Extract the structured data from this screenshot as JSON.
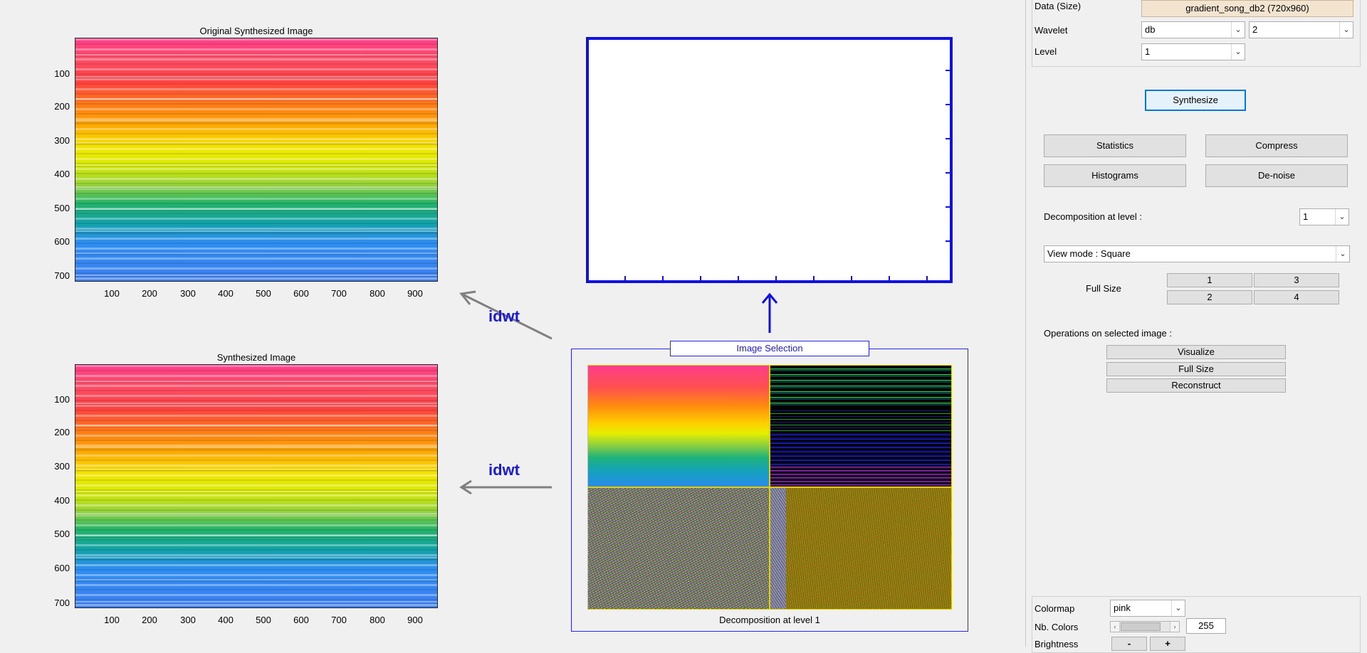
{
  "plots": {
    "top_title": "Original Synthesized Image",
    "bottom_title": "Synthesized Image",
    "y_ticks": [
      "100",
      "200",
      "300",
      "400",
      "500",
      "600",
      "700"
    ],
    "x_ticks": [
      "100",
      "200",
      "300",
      "400",
      "500",
      "600",
      "700",
      "800",
      "900"
    ]
  },
  "arrows": {
    "idwt_label": "idwt"
  },
  "selection": {
    "title": "Image Selection",
    "caption": "Decomposition at level 1"
  },
  "panel": {
    "data_label": "Data  (Size)",
    "data_value": "gradient_song_db2  (720x960)",
    "wavelet_label": "Wavelet",
    "wavelet_family": "db",
    "wavelet_order": "2",
    "level_label": "Level",
    "level_value": "1",
    "synthesize": "Synthesize",
    "statistics": "Statistics",
    "compress": "Compress",
    "histograms": "Histograms",
    "denoise": "De-noise",
    "decomp_label": "Decomposition at level :",
    "decomp_value": "1",
    "view_mode": "View mode : Square",
    "full_size_label": "Full Size",
    "fs1": "1",
    "fs2": "2",
    "fs3": "3",
    "fs4": "4",
    "ops_label": "Operations on selected image :",
    "visualize": "Visualize",
    "full_size": "Full Size",
    "reconstruct": "Reconstruct",
    "colormap_label": "Colormap",
    "colormap_value": "pink",
    "nbcolors_label": "Nb. Colors",
    "nbcolors_value": "255",
    "brightness_label": "Brightness",
    "minus": "-",
    "plus": "+"
  },
  "colors": {
    "accent_blue": "#1010e0",
    "button_focus": "#0078d7",
    "data_field": "#f3e4d0"
  }
}
